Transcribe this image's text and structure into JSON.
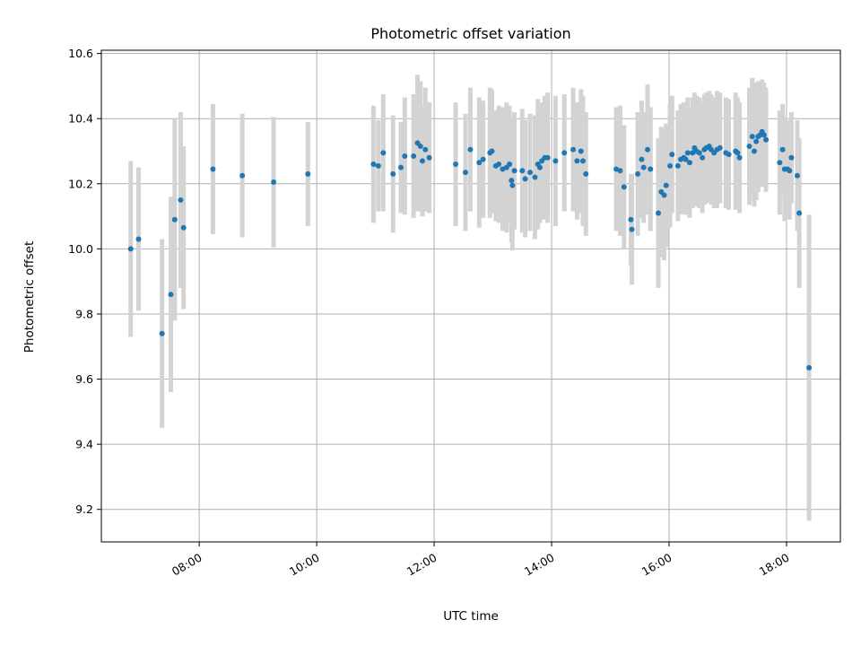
{
  "chart_data": {
    "type": "scatter",
    "title": "Photometric offset variation",
    "xlabel": "UTC time",
    "ylabel": "Photometric offset",
    "x_ticks": [
      "08:00",
      "10:00",
      "12:00",
      "14:00",
      "16:00",
      "18:00"
    ],
    "x_tick_values": [
      "08:00",
      "10:00",
      "12:00",
      "14:00",
      "16:00",
      "18:00"
    ],
    "xlim": [
      "06:20",
      "18:55"
    ],
    "y_ticks": [
      "9.2",
      "9.4",
      "9.6",
      "9.8",
      "10.0",
      "10.2",
      "10.4",
      "10.6"
    ],
    "y_tick_values": [
      9.2,
      9.4,
      9.6,
      9.8,
      10.0,
      10.2,
      10.4,
      10.6
    ],
    "ylim": [
      9.1,
      10.61
    ],
    "grid": true,
    "colors": {
      "points": "#1f77b4",
      "errorbars": "#d3d3d3",
      "grid": "#b0b0b0"
    },
    "series": [
      {
        "points": [
          [
            "06:50",
            10.0,
            0.27
          ],
          [
            "06:58",
            10.03,
            0.22
          ],
          [
            "07:22",
            9.74,
            0.29
          ],
          [
            "07:31",
            9.86,
            0.3
          ],
          [
            "07:35",
            10.09,
            0.31
          ],
          [
            "07:41",
            10.15,
            0.27
          ],
          [
            "07:44",
            10.065,
            0.25
          ],
          [
            "08:14",
            10.245,
            0.2
          ],
          [
            "08:44",
            10.225,
            0.19
          ],
          [
            "09:16",
            10.205,
            0.2
          ],
          [
            "09:51",
            10.23,
            0.16
          ],
          [
            "10:58",
            10.26,
            0.18
          ],
          [
            "11:03",
            10.255,
            0.14
          ],
          [
            "11:08",
            10.295,
            0.18
          ],
          [
            "11:18",
            10.23,
            0.18
          ],
          [
            "11:26",
            10.25,
            0.14
          ],
          [
            "11:30",
            10.285,
            0.18
          ],
          [
            "11:39",
            10.285,
            0.19
          ],
          [
            "11:43",
            10.325,
            0.21
          ],
          [
            "11:46",
            10.315,
            0.2
          ],
          [
            "11:48",
            10.27,
            0.17
          ],
          [
            "11:51",
            10.305,
            0.19
          ],
          [
            "11:55",
            10.28,
            0.17
          ],
          [
            "12:22",
            10.26,
            0.19
          ],
          [
            "12:32",
            10.235,
            0.18
          ],
          [
            "12:37",
            10.305,
            0.19
          ],
          [
            "12:46",
            10.265,
            0.2
          ],
          [
            "12:50",
            10.275,
            0.18
          ],
          [
            "12:57",
            10.295,
            0.2
          ],
          [
            "12:59",
            10.3,
            0.19
          ],
          [
            "13:03",
            10.255,
            0.17
          ],
          [
            "13:06",
            10.26,
            0.18
          ],
          [
            "13:10",
            10.245,
            0.19
          ],
          [
            "13:14",
            10.25,
            0.2
          ],
          [
            "13:17",
            10.26,
            0.18
          ],
          [
            "13:19",
            10.21,
            0.19
          ],
          [
            "13:20",
            10.195,
            0.2
          ],
          [
            "13:22",
            10.24,
            0.18
          ],
          [
            "13:30",
            10.24,
            0.19
          ],
          [
            "13:33",
            10.215,
            0.18
          ],
          [
            "13:38",
            10.235,
            0.18
          ],
          [
            "13:43",
            10.22,
            0.19
          ],
          [
            "13:46",
            10.26,
            0.2
          ],
          [
            "13:48",
            10.25,
            0.17
          ],
          [
            "13:50",
            10.27,
            0.18
          ],
          [
            "13:53",
            10.28,
            0.19
          ],
          [
            "13:56",
            10.28,
            0.2
          ],
          [
            "14:04",
            10.27,
            0.2
          ],
          [
            "14:13",
            10.295,
            0.18
          ],
          [
            "14:22",
            10.305,
            0.19
          ],
          [
            "14:26",
            10.27,
            0.18
          ],
          [
            "14:30",
            10.3,
            0.19
          ],
          [
            "14:32",
            10.27,
            0.2
          ],
          [
            "14:35",
            10.23,
            0.19
          ],
          [
            "15:06",
            10.245,
            0.19
          ],
          [
            "15:10",
            10.24,
            0.2
          ],
          [
            "15:14",
            10.19,
            0.19
          ],
          [
            "15:21",
            10.09,
            0.14
          ],
          [
            "15:22",
            10.06,
            0.17
          ],
          [
            "15:28",
            10.23,
            0.19
          ],
          [
            "15:32",
            10.275,
            0.18
          ],
          [
            "15:34",
            10.25,
            0.17
          ],
          [
            "15:38",
            10.305,
            0.2
          ],
          [
            "15:41",
            10.245,
            0.19
          ],
          [
            "15:49",
            10.11,
            0.23
          ],
          [
            "15:52",
            10.175,
            0.2
          ],
          [
            "15:55",
            10.165,
            0.2
          ],
          [
            "15:57",
            10.195,
            0.19
          ],
          [
            "16:01",
            10.255,
            0.19
          ],
          [
            "16:03",
            10.29,
            0.18
          ],
          [
            "16:09",
            10.255,
            0.17
          ],
          [
            "16:12",
            10.275,
            0.17
          ],
          [
            "16:15",
            10.28,
            0.17
          ],
          [
            "16:17",
            10.275,
            0.17
          ],
          [
            "16:19",
            10.295,
            0.17
          ],
          [
            "16:21",
            10.265,
            0.17
          ],
          [
            "16:24",
            10.295,
            0.17
          ],
          [
            "16:26",
            10.31,
            0.17
          ],
          [
            "16:28",
            10.3,
            0.17
          ],
          [
            "16:31",
            10.295,
            0.17
          ],
          [
            "16:34",
            10.28,
            0.17
          ],
          [
            "16:36",
            10.305,
            0.17
          ],
          [
            "16:38",
            10.31,
            0.17
          ],
          [
            "16:41",
            10.315,
            0.17
          ],
          [
            "16:43",
            10.305,
            0.17
          ],
          [
            "16:46",
            10.295,
            0.17
          ],
          [
            "16:49",
            10.305,
            0.18
          ],
          [
            "16:52",
            10.31,
            0.17
          ],
          [
            "16:58",
            10.295,
            0.17
          ],
          [
            "17:01",
            10.29,
            0.17
          ],
          [
            "17:08",
            10.3,
            0.18
          ],
          [
            "17:10",
            10.295,
            0.17
          ],
          [
            "17:12",
            10.28,
            0.17
          ],
          [
            "17:22",
            10.315,
            0.18
          ],
          [
            "17:25",
            10.345,
            0.18
          ],
          [
            "17:27",
            10.3,
            0.17
          ],
          [
            "17:29",
            10.33,
            0.18
          ],
          [
            "17:31",
            10.345,
            0.17
          ],
          [
            "17:33",
            10.35,
            0.16
          ],
          [
            "17:35",
            10.36,
            0.16
          ],
          [
            "17:37",
            10.35,
            0.16
          ],
          [
            "17:39",
            10.335,
            0.16
          ],
          [
            "17:53",
            10.265,
            0.16
          ],
          [
            "17:56",
            10.305,
            0.14
          ],
          [
            "17:58",
            10.245,
            0.16
          ],
          [
            "18:01",
            10.245,
            0.15
          ],
          [
            "18:03",
            10.24,
            0.15
          ],
          [
            "18:05",
            10.28,
            0.14
          ],
          [
            "18:11",
            10.225,
            0.17
          ],
          [
            "18:13",
            10.11,
            0.23
          ],
          [
            "18:23",
            9.635,
            0.47
          ]
        ]
      }
    ]
  }
}
